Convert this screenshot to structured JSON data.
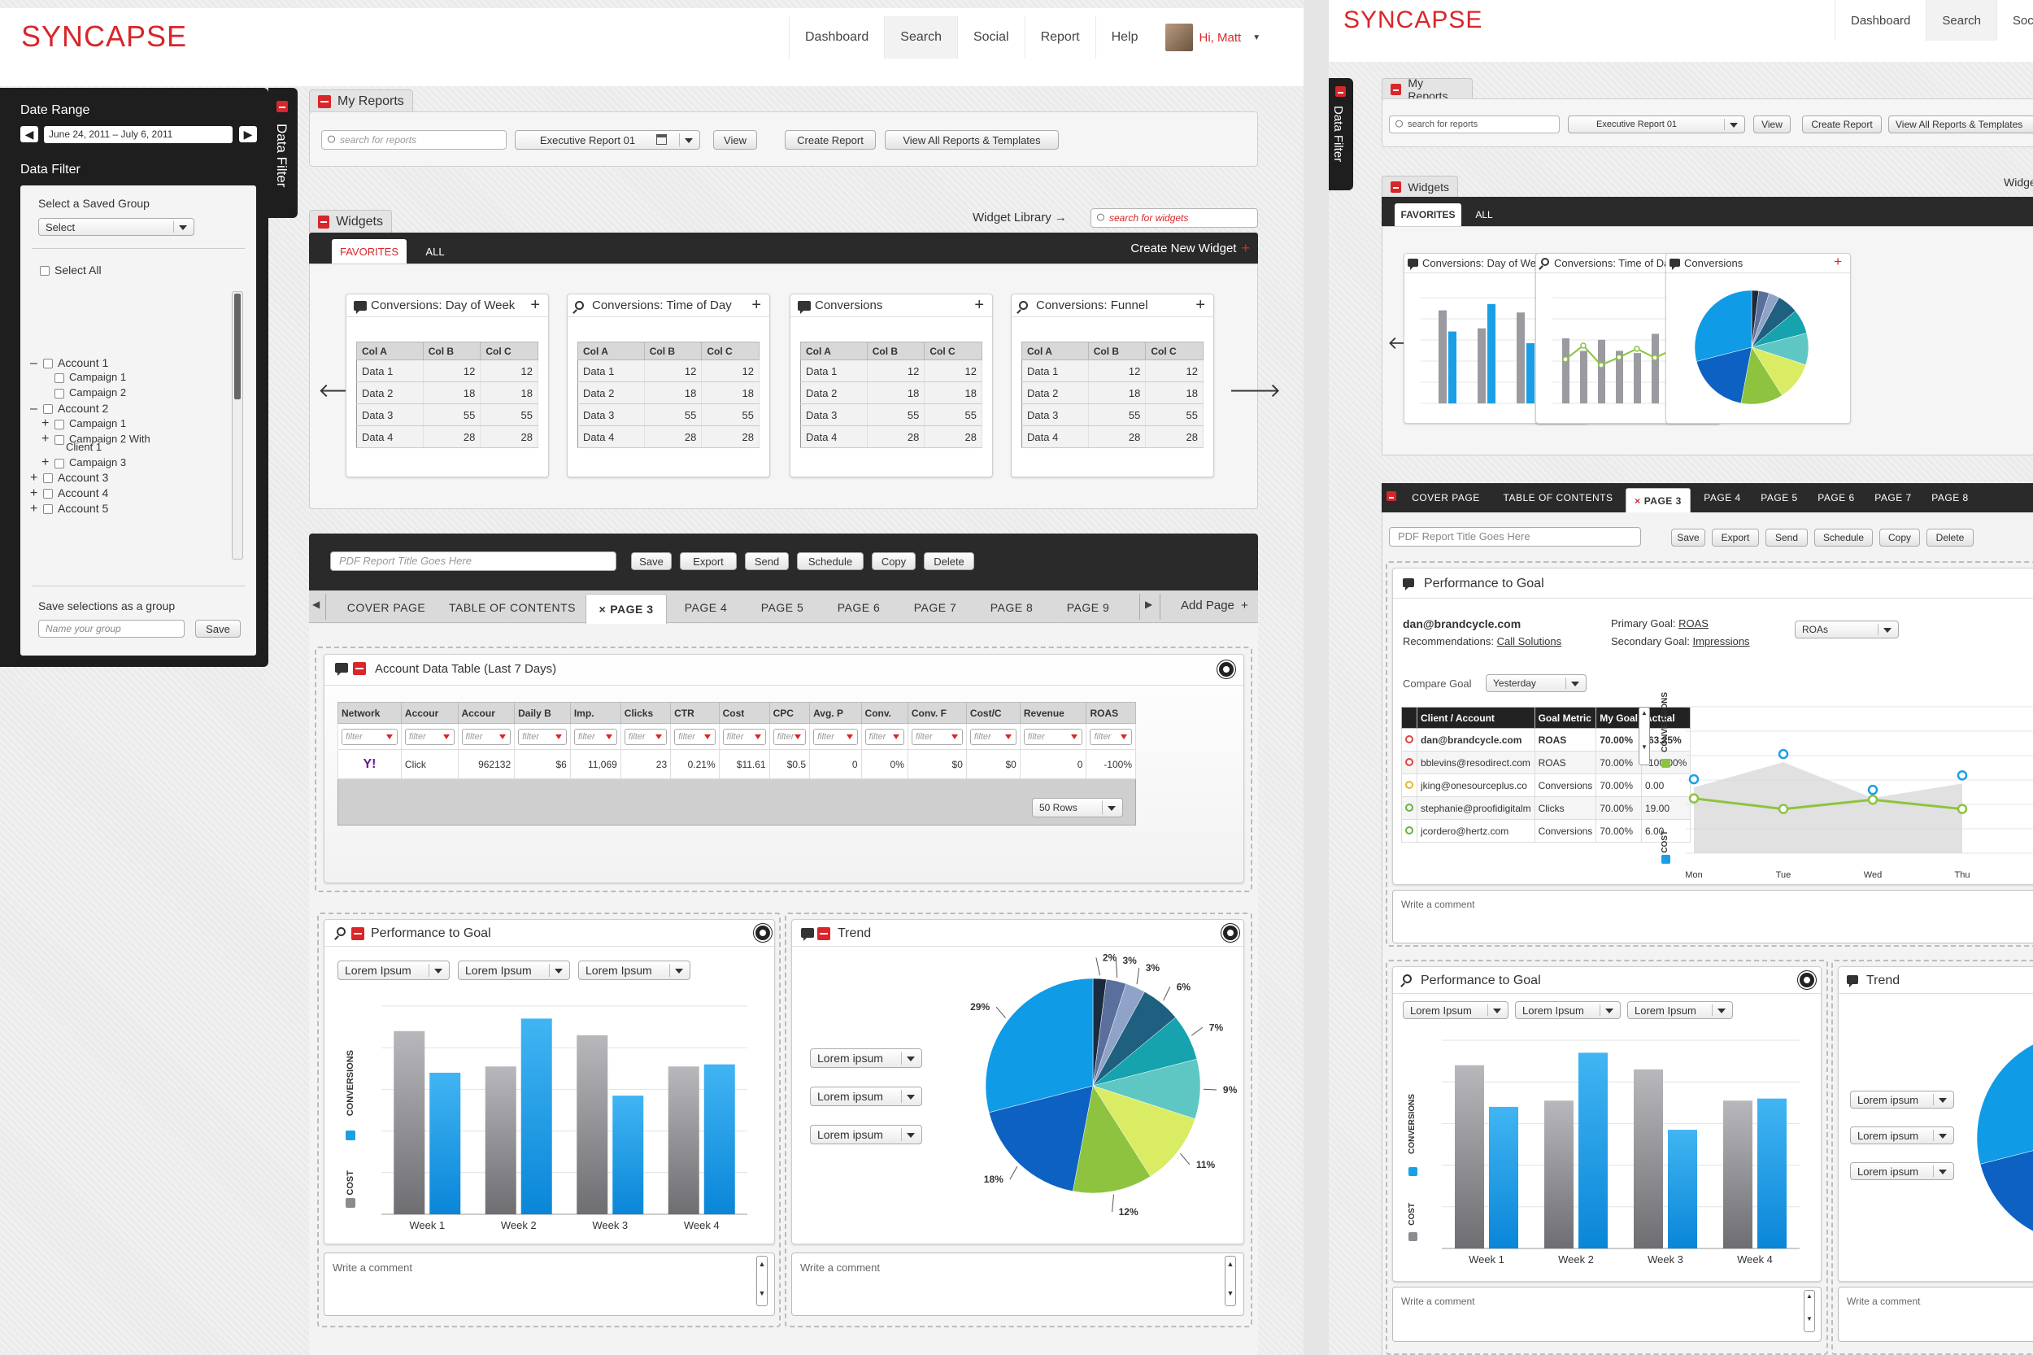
{
  "app": {
    "logo": "SYNCAPSE"
  },
  "nav": {
    "items": [
      "Dashboard",
      "Search",
      "Social",
      "Report",
      "Help"
    ],
    "active": "Search",
    "user": "Hi, Matt"
  },
  "sidebar": {
    "date_range_label": "Date Range",
    "date_range_value": "June 24, 2011 – July 6, 2011",
    "data_filter_label": "Data Filter",
    "tab_label": "Data Filter",
    "saved_group_label": "Select a Saved Group",
    "saved_group_select": "Select",
    "select_all": "Select All",
    "tree": [
      {
        "sign": "–",
        "label": "Account 1",
        "indent": 0
      },
      {
        "sign": "",
        "label": "Campaign 1",
        "indent": 1
      },
      {
        "sign": "",
        "label": "Campaign 2",
        "indent": 1
      },
      {
        "sign": "–",
        "label": "Account 2",
        "indent": 0
      },
      {
        "sign": "+",
        "label": "Campaign 1",
        "indent": 1
      },
      {
        "sign": "+",
        "label": "Campaign 2 With",
        "indent": 1
      },
      {
        "sign": "",
        "label": "Client 1",
        "indent": 2
      },
      {
        "sign": "+",
        "label": "Campaign 3",
        "indent": 1
      },
      {
        "sign": "+",
        "label": "Account 3",
        "indent": 0
      },
      {
        "sign": "+",
        "label": "Account 4",
        "indent": 0
      },
      {
        "sign": "+",
        "label": "Account 5",
        "indent": 0
      }
    ],
    "save_label": "Save selections as a group",
    "group_placeholder": "Name your group",
    "save_button": "Save"
  },
  "my_reports": {
    "title": "My Reports",
    "search_placeholder": "search for reports",
    "report_select": "Executive Report 01",
    "view_button": "View",
    "create_button": "Create Report",
    "view_all_button": "View All Reports & Templates"
  },
  "widgets": {
    "title": "Widgets",
    "library_link": "Widget Library →",
    "search_placeholder": "search for widgets",
    "tabs": [
      "FAVORITES",
      "ALL"
    ],
    "create_new": "Create New Widget",
    "cards": [
      {
        "title": "Conversions: Day of Week",
        "icon": "chat-icon"
      },
      {
        "title": "Conversions: Time of Day",
        "icon": "search-icon"
      },
      {
        "title": "Conversions",
        "icon": "chat-icon"
      },
      {
        "title": "Conversions: Funnel",
        "icon": "search-icon"
      }
    ],
    "table_headers": [
      "Col A",
      "Col B",
      "Col C"
    ],
    "table_rows": [
      [
        "Data 1",
        "12",
        "12"
      ],
      [
        "Data 2",
        "18",
        "18"
      ],
      [
        "Data 3",
        "55",
        "55"
      ],
      [
        "Data 4",
        "28",
        "28"
      ]
    ]
  },
  "report_editor": {
    "title_placeholder": "PDF Report Title Goes Here",
    "actions": [
      "Save",
      "Export",
      "Send",
      "Schedule",
      "Copy",
      "Delete"
    ],
    "pages": [
      "COVER PAGE",
      "TABLE OF CONTENTS",
      "PAGE 3",
      "PAGE 4",
      "PAGE 5",
      "PAGE 6",
      "PAGE 7",
      "PAGE 8",
      "PAGE 9"
    ],
    "active_page": "PAGE 3",
    "add_page": "Add Page"
  },
  "account_table": {
    "title": "Account Data Table (Last 7 Days)",
    "headers": [
      "Network",
      "Accour",
      "Accour",
      "Daily B",
      "Imp.",
      "Clicks",
      "CTR",
      "Cost",
      "CPC",
      "Avg. P",
      "Conv.",
      "Conv. F",
      "Cost/C",
      "Revenue",
      "ROAS"
    ],
    "filter_placeholder": "filter",
    "row": [
      "Y!",
      "Click",
      "962132",
      "$6",
      "11,069",
      "23",
      "0.21%",
      "$11.61",
      "$0.5",
      "0",
      "0%",
      "$0",
      "$0",
      "0",
      "-100%"
    ],
    "rows_select": "50 Rows"
  },
  "perf_widget": {
    "title": "Performance to Goal",
    "selects": [
      "Lorem Ipsum",
      "Lorem Ipsum",
      "Lorem Ipsum"
    ],
    "y_labels": [
      "CONVERSIONS",
      "COST"
    ],
    "comment_placeholder": "Write a comment"
  },
  "trend_widget": {
    "title": "Trend",
    "selects": [
      "Lorem ipsum",
      "Lorem ipsum",
      "Lorem ipsum"
    ],
    "comment_placeholder": "Write a comment"
  },
  "colors": {
    "accent": "#d8262a",
    "dark": "#2a2a2a",
    "blue": "#1a9fe6",
    "gray": "#8c8c90"
  },
  "chart_data": [
    {
      "type": "bar",
      "chart": "performance-to-goal",
      "categories": [
        "Week 1",
        "Week 2",
        "Week 3",
        "Week 4"
      ],
      "series": [
        {
          "name": "COST",
          "values": [
            88,
            71,
            86,
            71
          ]
        },
        {
          "name": "CONVERSIONS",
          "values": [
            68,
            94,
            57,
            72
          ]
        }
      ],
      "ylim": [
        0,
        100
      ],
      "grid": true
    },
    {
      "type": "pie",
      "chart": "trend",
      "slices": [
        {
          "label": "2%",
          "value": 2,
          "color": "#1b2a3e"
        },
        {
          "label": "3%",
          "value": 3,
          "color": "#5a6f9c"
        },
        {
          "label": "3%",
          "value": 3,
          "color": "#8fa3c8"
        },
        {
          "label": "6%",
          "value": 6,
          "color": "#1f5f7f"
        },
        {
          "label": "7%",
          "value": 7,
          "color": "#16a3ad"
        },
        {
          "label": "9%",
          "value": 9,
          "color": "#5ec7c4"
        },
        {
          "label": "11%",
          "value": 11,
          "color": "#d9ec63"
        },
        {
          "label": "12%",
          "value": 12,
          "color": "#8dc33f"
        },
        {
          "label": "18%",
          "value": 18,
          "color": "#0d61c2"
        },
        {
          "label": "29%",
          "value": 29,
          "color": "#0f9be6"
        }
      ]
    },
    {
      "type": "table",
      "chart": "performance-to-goal-detail",
      "account": "dan@brandcycle.com",
      "recommendations_label": "Recommendations:",
      "recommendations": "Call Solutions",
      "primary_goal_label": "Primary Goal:",
      "primary_goal": "ROAS",
      "secondary_goal_label": "Secondary Goal:",
      "secondary_goal": "Impressions",
      "goal_select": "ROAs",
      "compare_label": "Compare Goal",
      "compare_select": "Yesterday",
      "headers": [
        "Client / Account",
        "Goal Metric",
        "My Goal",
        "Actual"
      ],
      "rows": [
        [
          "dan@brandcycle.com",
          "ROAS",
          "70.00%",
          "-63.25%"
        ],
        [
          "bblevins@resodirect.com",
          "ROAS",
          "70.00%",
          "-100.00%"
        ],
        [
          "jking@onesourceplus.co",
          "Conversions",
          "70.00%",
          "0.00"
        ],
        [
          "stephanie@proofidigitalm",
          "Clicks",
          "70.00%",
          "19.00"
        ],
        [
          "jcordero@hertz.com",
          "Conversions",
          "70.00%",
          "6.00"
        ]
      ],
      "row_colors": [
        "#e0433b",
        "#e0433b",
        "#e9b824",
        "#6ab23e",
        "#6ab23e"
      ],
      "days": [
        "Mon",
        "Tue",
        "Wed",
        "Thu"
      ]
    }
  ]
}
